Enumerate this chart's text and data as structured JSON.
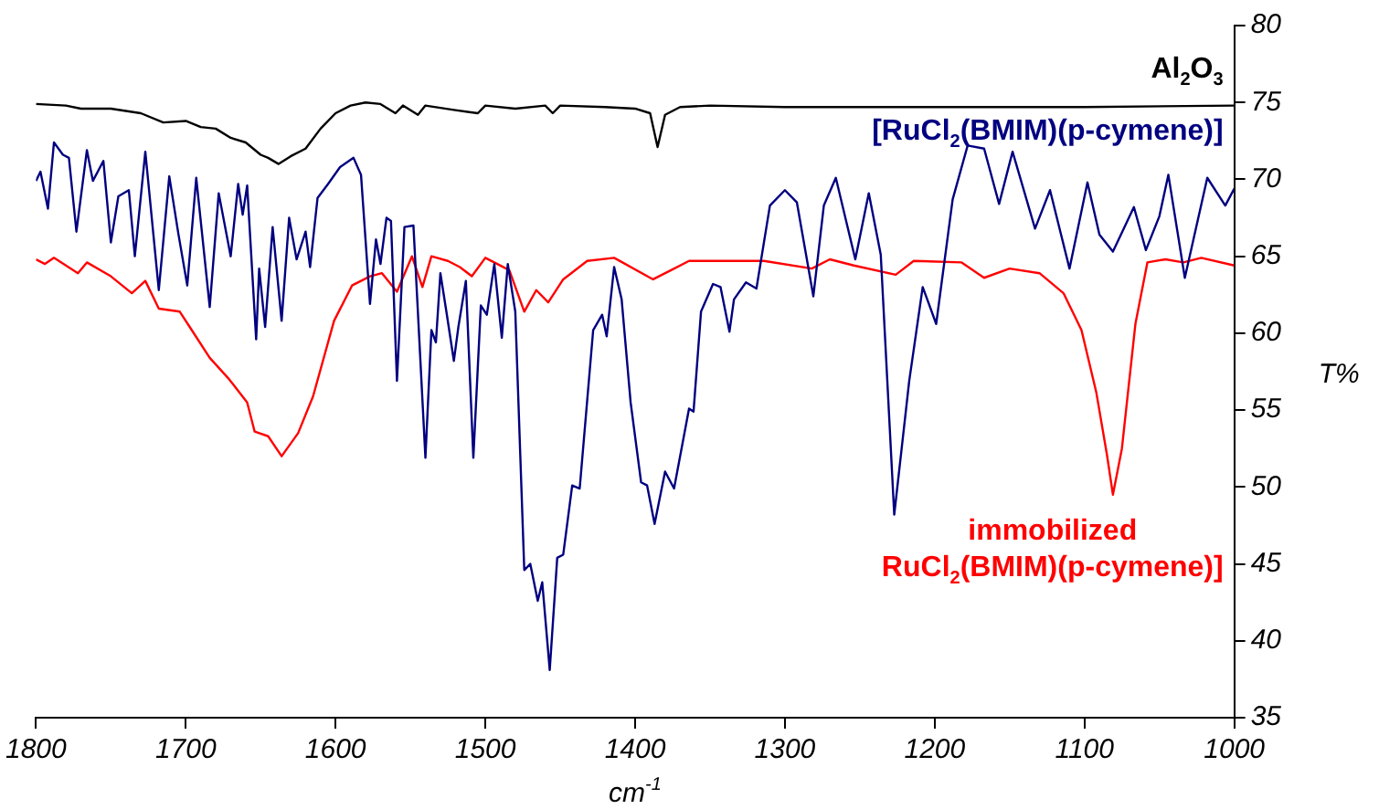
{
  "chart_data": {
    "type": "line",
    "xlabel": "cm$^{-1}$",
    "ylabel": "T%",
    "xlim": [
      1800,
      1000
    ],
    "xticks": [
      1800,
      1700,
      1600,
      1500,
      1400,
      1300,
      1200,
      1100,
      1000
    ],
    "ylim": [
      35,
      80
    ],
    "yticks": [
      35,
      40,
      45,
      50,
      55,
      60,
      65,
      70,
      75,
      80
    ],
    "grid": false,
    "legend": false,
    "marker": "none",
    "line_style": "solid",
    "series": [
      {
        "name": "Al$_{2}$O$_{3}$",
        "color": "#000000",
        "x": [
          1800,
          1780,
          1770,
          1750,
          1730,
          1715,
          1700,
          1690,
          1680,
          1670,
          1660,
          1650,
          1645,
          1638,
          1630,
          1620,
          1610,
          1600,
          1590,
          1580,
          1570,
          1560,
          1555,
          1545,
          1540,
          1520,
          1505,
          1500,
          1480,
          1460,
          1455,
          1450,
          1420,
          1400,
          1390,
          1385,
          1380,
          1370,
          1350,
          1300,
          1200,
          1100,
          1000
        ],
        "values": [
          74.9,
          74.8,
          74.6,
          74.6,
          74.3,
          73.7,
          73.8,
          73.4,
          73.3,
          72.7,
          72.4,
          71.6,
          71.4,
          71.0,
          71.5,
          72.0,
          73.3,
          74.3,
          74.8,
          75.0,
          74.9,
          74.3,
          74.8,
          74.2,
          74.8,
          74.5,
          74.3,
          74.8,
          74.6,
          74.8,
          74.3,
          74.8,
          74.7,
          74.6,
          74.3,
          72.1,
          74.2,
          74.7,
          74.8,
          74.7,
          74.7,
          74.7,
          74.8
        ]
      },
      {
        "name": "[RuCl$_{2}$(BMIM)(p-cymene)]",
        "color": "#000080",
        "x": [
          1800,
          1797,
          1792,
          1788,
          1782,
          1778,
          1773,
          1766,
          1762,
          1755,
          1750,
          1745,
          1738,
          1734,
          1727,
          1718,
          1711,
          1705,
          1699,
          1693,
          1684,
          1678,
          1670,
          1665,
          1662,
          1659,
          1653,
          1651,
          1647,
          1642,
          1636,
          1631,
          1626,
          1620,
          1617,
          1612,
          1605,
          1597,
          1588,
          1583,
          1577,
          1573,
          1570,
          1566,
          1563,
          1559,
          1554,
          1548,
          1540,
          1536,
          1533,
          1530,
          1526,
          1521,
          1518,
          1513,
          1508,
          1503,
          1499,
          1494,
          1489,
          1485,
          1480,
          1474,
          1470,
          1465,
          1462,
          1457,
          1452,
          1448,
          1442,
          1437,
          1428,
          1422,
          1419,
          1414,
          1409,
          1403,
          1396,
          1392,
          1387,
          1380,
          1374,
          1364,
          1361,
          1356,
          1348,
          1343,
          1337,
          1334,
          1326,
          1319,
          1310,
          1300,
          1292,
          1281,
          1274,
          1266,
          1253,
          1244,
          1236,
          1227,
          1217,
          1208,
          1199,
          1188,
          1178,
          1167,
          1157,
          1148,
          1133,
          1123,
          1110,
          1098,
          1090,
          1081,
          1067,
          1059,
          1050,
          1044,
          1033,
          1018,
          1006,
          1000
        ],
        "values": [
          69.9,
          70.5,
          68.1,
          72.4,
          71.6,
          71.4,
          66.6,
          71.9,
          69.9,
          71.2,
          65.9,
          68.9,
          69.3,
          65.0,
          71.8,
          62.8,
          70.2,
          66.5,
          63.1,
          70.1,
          61.7,
          69.1,
          65.0,
          69.7,
          67.7,
          69.6,
          59.6,
          64.2,
          60.4,
          66.9,
          60.8,
          67.5,
          64.8,
          66.6,
          64.3,
          68.8,
          69.7,
          70.8,
          71.4,
          70.3,
          61.9,
          66.1,
          64.5,
          67.5,
          67.3,
          56.9,
          66.9,
          67.0,
          51.9,
          60.2,
          59.4,
          63.9,
          61.4,
          58.2,
          60.4,
          63.4,
          51.9,
          61.8,
          61.2,
          64.5,
          59.7,
          64.5,
          61.4,
          44.6,
          45.0,
          42.6,
          43.8,
          38.1,
          45.4,
          45.6,
          50.1,
          49.9,
          60.2,
          61.2,
          59.8,
          64.3,
          62.2,
          55.5,
          50.3,
          50.1,
          47.6,
          51.0,
          49.9,
          55.1,
          54.9,
          61.4,
          63.2,
          63.0,
          60.1,
          62.2,
          63.3,
          62.9,
          68.3,
          69.3,
          68.5,
          62.4,
          68.3,
          70.1,
          64.8,
          69.1,
          65.1,
          48.2,
          56.9,
          63.0,
          60.6,
          68.7,
          72.2,
          72.0,
          68.4,
          71.8,
          66.8,
          69.3,
          64.2,
          69.8,
          66.4,
          65.3,
          68.2,
          65.4,
          67.6,
          70.3,
          63.6,
          70.1,
          68.3,
          69.4
        ]
      },
      {
        "name": "immobilized RuCl$_{2}$(BMIM)(p-cymene)]",
        "color": "#ff0000",
        "x": [
          1800,
          1794,
          1788,
          1772,
          1766,
          1750,
          1736,
          1727,
          1718,
          1704,
          1696,
          1684,
          1671,
          1659,
          1654,
          1645,
          1636,
          1625,
          1615,
          1601,
          1589,
          1577,
          1569,
          1559,
          1549,
          1542,
          1536,
          1525,
          1517,
          1509,
          1500,
          1484,
          1474,
          1466,
          1458,
          1448,
          1432,
          1414,
          1388,
          1376,
          1364,
          1354,
          1314,
          1282,
          1270,
          1254,
          1226,
          1214,
          1182,
          1167,
          1150,
          1130,
          1114,
          1102,
          1092,
          1085,
          1081,
          1075,
          1066,
          1058,
          1046,
          1034,
          1022,
          1000
        ],
        "values": [
          64.8,
          64.5,
          64.9,
          63.9,
          64.6,
          63.7,
          62.6,
          63.4,
          61.6,
          61.4,
          60.2,
          58.4,
          57.0,
          55.5,
          53.6,
          53.3,
          52.0,
          53.5,
          55.9,
          60.8,
          63.1,
          63.7,
          63.9,
          62.7,
          65.0,
          63.0,
          65.0,
          64.7,
          64.3,
          63.7,
          64.9,
          64.1,
          61.4,
          62.8,
          62.0,
          63.5,
          64.7,
          64.9,
          63.5,
          64.1,
          64.7,
          64.7,
          64.7,
          64.2,
          64.8,
          64.4,
          63.8,
          64.7,
          64.6,
          63.6,
          64.2,
          63.9,
          62.6,
          60.2,
          56.1,
          52.1,
          49.5,
          52.5,
          60.6,
          64.6,
          64.8,
          64.6,
          64.9,
          64.4
        ]
      }
    ]
  }
}
